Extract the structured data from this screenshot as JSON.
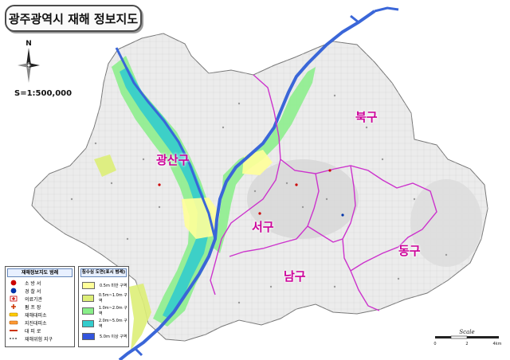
{
  "title": "광주광역시 재해 정보지도",
  "north_label": "N",
  "scale_text": "S=1:500,000",
  "scalebar_label": "Scale",
  "scalebar_ticks": [
    "0",
    "2",
    "4km"
  ],
  "districts": [
    "북구",
    "광산구",
    "서구",
    "동구",
    "남구"
  ],
  "colors": {
    "boundary": "#cc33cc",
    "river": "#3a66d8",
    "land": "#ececec",
    "flood_lt_0_5": "#ffff99",
    "flood_0_5_1": "#ddee77",
    "flood_1_2": "#88ee88",
    "flood_2_5": "#33cccc",
    "flood_gt_5": "#3355dd"
  },
  "legend_facilities": {
    "title": "재해정보지도 범례",
    "items": [
      {
        "label": "소 방 서",
        "icon": "fire-station-icon"
      },
      {
        "label": "경 찰 서",
        "icon": "police-station-icon"
      },
      {
        "label": "의료기관",
        "icon": "hospital-icon"
      },
      {
        "label": "펌 프 장",
        "icon": "pump-station-icon"
      },
      {
        "label": "재해대피소",
        "icon": "shelter-icon"
      },
      {
        "label": "지진대피소",
        "icon": "earthquake-shelter-icon"
      },
      {
        "label": "대 피 로",
        "icon": "evacuation-route-icon"
      },
      {
        "label": "재해위험 지구",
        "icon": "hazard-zone-icon"
      }
    ]
  },
  "legend_flood": {
    "title": "침수심 도면(표시 범례)",
    "items": [
      {
        "label": "0.5m 미만 구역",
        "color": "#ffff99"
      },
      {
        "label": "0.5m~1.0m 구역",
        "color": "#ddee77"
      },
      {
        "label": "1.0m~2.0m 구역",
        "color": "#88ee88"
      },
      {
        "label": "2.0m~5.0m 구역",
        "color": "#33cccc"
      },
      {
        "label": "5.0m 이상 구역",
        "color": "#3355dd"
      }
    ]
  }
}
